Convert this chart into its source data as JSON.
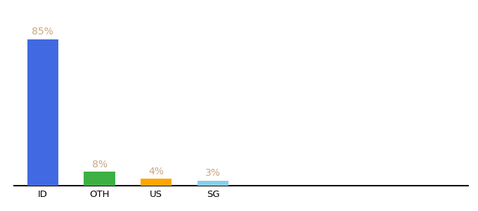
{
  "categories": [
    "ID",
    "OTH",
    "US",
    "SG"
  ],
  "values": [
    85,
    8,
    4,
    3
  ],
  "bar_colors": [
    "#4169e1",
    "#3cb043",
    "#ffa500",
    "#87ceeb"
  ],
  "label_color": "#c8a882",
  "background_color": "#ffffff",
  "ylim": [
    0,
    98
  ],
  "bar_width": 0.55,
  "label_fontsize": 10,
  "tick_fontsize": 9.5,
  "spine_color": "#111111",
  "x_positions": [
    0.5,
    1.5,
    2.5,
    3.5
  ],
  "xlim": [
    0,
    8.0
  ]
}
